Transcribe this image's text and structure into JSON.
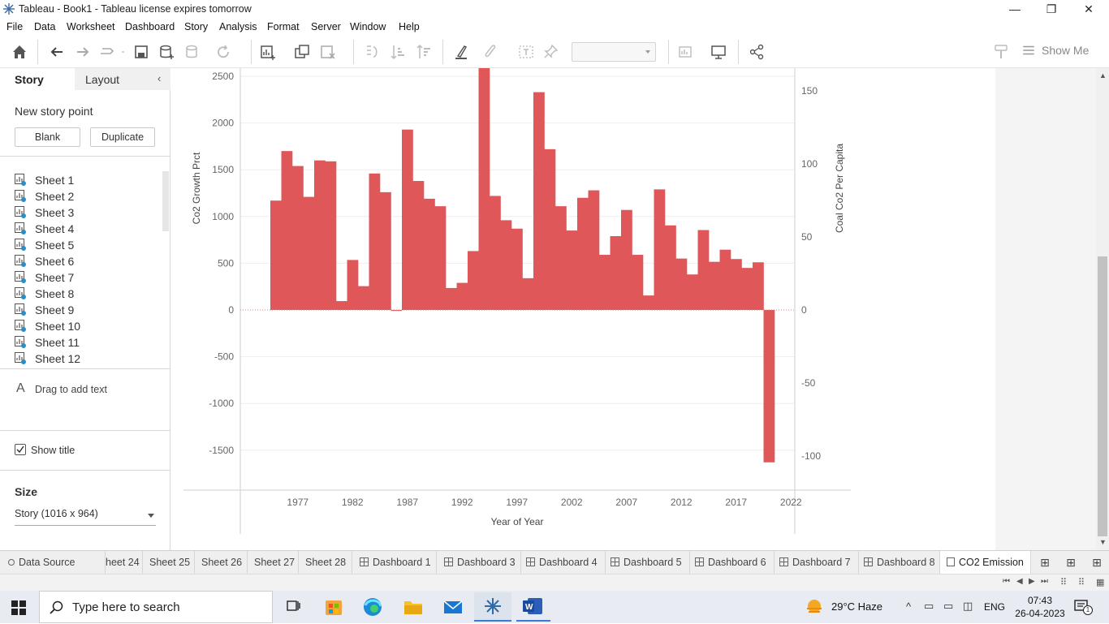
{
  "window": {
    "title": "Tableau - Book1 - Tableau license expires tomorrow",
    "minimize": "—",
    "restore": "❐",
    "close": "✕"
  },
  "menu": [
    "File",
    "Data",
    "Worksheet",
    "Dashboard",
    "Story",
    "Analysis",
    "Format",
    "Server",
    "Window",
    "Help"
  ],
  "toolbar": {
    "show_me_label": "Show Me",
    "icons": [
      "home-icon",
      "undo-icon",
      "redo-icon",
      "replay-icon",
      "save-icon",
      "new-datasource-icon",
      "pause-updates-icon",
      "refresh-icon",
      "new-worksheet-icon",
      "duplicate-icon",
      "clear-icon",
      "swap-icon",
      "sort-asc-icon",
      "sort-desc-icon",
      "highlight-icon",
      "annotate-icon",
      "labels-icon",
      "pin-icon",
      "fit-icon",
      "presentation-icon",
      "share-icon"
    ]
  },
  "left_panel": {
    "tab_story": "Story",
    "tab_layout": "Layout",
    "collapse": "‹",
    "new_story_point": "New story point",
    "blank_button": "Blank",
    "duplicate_button": "Duplicate",
    "sheets": [
      "Sheet 1",
      "Sheet 2",
      "Sheet 3",
      "Sheet 4",
      "Sheet 5",
      "Sheet 6",
      "Sheet 7",
      "Sheet 8",
      "Sheet 9",
      "Sheet 10",
      "Sheet 11",
      "Sheet 12"
    ],
    "drag_text_icon": "A",
    "drag_text": "Drag to add text",
    "show_title_label": "Show title",
    "show_title_checked": true,
    "size_label": "Size",
    "size_value": "Story (1016 x 964)"
  },
  "chart_data": {
    "type": "bar",
    "xlabel": "Year of Year",
    "ylabel": "Co2 Growth Prct",
    "y2label": "Coal Co2 Per Capita",
    "color": "#e05759",
    "x_ticks": [
      1977,
      1982,
      1987,
      1992,
      1997,
      2002,
      2007,
      2012,
      2017,
      2022
    ],
    "y_ticks": [
      2500,
      2000,
      1500,
      1000,
      500,
      0,
      -500,
      -1000,
      -1500
    ],
    "y2_ticks": [
      150,
      100,
      50,
      0,
      -50,
      -100
    ],
    "ylim": [
      -1900,
      2550
    ],
    "y2lim": [
      -120,
      150
    ],
    "x": [
      1975,
      1976,
      1977,
      1978,
      1979,
      1980,
      1981,
      1982,
      1983,
      1984,
      1985,
      1986,
      1987,
      1988,
      1989,
      1990,
      1991,
      1992,
      1993,
      1994,
      1995,
      1996,
      1997,
      1998,
      1999,
      2000,
      2001,
      2002,
      2003,
      2004,
      2005,
      2006,
      2007,
      2008,
      2009,
      2010,
      2011,
      2012,
      2013,
      2014,
      2015,
      2016,
      2017,
      2018,
      2019,
      2020
    ],
    "values": [
      1170,
      1700,
      1540,
      1210,
      1600,
      1590,
      95,
      535,
      255,
      1460,
      1260,
      -10,
      1930,
      1380,
      1190,
      1110,
      235,
      290,
      630,
      2680,
      1220,
      960,
      870,
      340,
      2330,
      1720,
      1110,
      850,
      1200,
      1280,
      590,
      790,
      1070,
      590,
      155,
      1290,
      905,
      550,
      380,
      855,
      515,
      645,
      545,
      450,
      510,
      -1630
    ]
  },
  "bottom_tabs": {
    "data_source": "Data Source",
    "tabs": [
      "heet 24",
      "Sheet 25",
      "Sheet 26",
      "Sheet 27",
      "Sheet 28",
      "Dashboard 1",
      "Dashboard 3",
      "Dashboard 4",
      "Dashboard 5",
      "Dashboard 6",
      "Dashboard 7",
      "Dashboard 8"
    ],
    "active": "CO2 Emission"
  },
  "taskbar": {
    "search_placeholder": "Type here to search",
    "weather": "29°C  Haze",
    "language": "ENG",
    "time": "07:43",
    "date": "26-04-2023",
    "notification_count": "1"
  }
}
